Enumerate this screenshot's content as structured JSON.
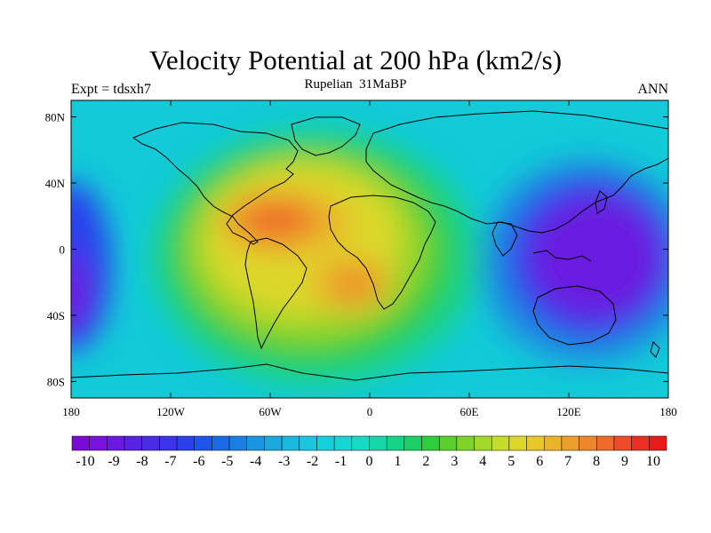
{
  "header": {
    "title": "Velocity Potential at 200 hPa (km2/s)",
    "subtitle": "Rupelian  31MaBP",
    "left_label": "Expt = tdsxh7",
    "right_label": "ANN"
  },
  "map": {
    "projection": "cylindrical-equidistant",
    "lon_range": [
      -180,
      180
    ],
    "lat_range": [
      -90,
      90
    ],
    "lon_ticks": [
      {
        "value": -180,
        "label": "180"
      },
      {
        "value": -120,
        "label": "120W"
      },
      {
        "value": -60,
        "label": "60W"
      },
      {
        "value": 0,
        "label": "0"
      },
      {
        "value": 60,
        "label": "60E"
      },
      {
        "value": 120,
        "label": "120E"
      },
      {
        "value": 180,
        "label": "180"
      }
    ],
    "lat_ticks": [
      {
        "value": 80,
        "label": "80N"
      },
      {
        "value": 40,
        "label": "40N"
      },
      {
        "value": 0,
        "label": "0"
      },
      {
        "value": -40,
        "label": "40S"
      },
      {
        "value": -80,
        "label": "80S"
      }
    ],
    "field_features": [
      {
        "name": "Atlantic / South America maximum",
        "lon": -55,
        "lat": 18,
        "value": 9.5
      },
      {
        "name": "South Atlantic / Africa maximum",
        "lon": -10,
        "lat": -20,
        "value": 8.5
      },
      {
        "name": "Western Pacific minimum",
        "lon": 140,
        "lat": 0,
        "value": -10
      },
      {
        "name": "Dateline minimum west edge",
        "lon": -180,
        "lat": -25,
        "value": -8
      }
    ]
  },
  "colorbar": {
    "labels": [
      "-10",
      "-9",
      "-8",
      "-7",
      "-6",
      "-5",
      "-4",
      "-3",
      "-2",
      "-1",
      "0",
      "1",
      "2",
      "3",
      "4",
      "5",
      "6",
      "7",
      "8",
      "9",
      "10"
    ],
    "colors": [
      "#7a0ad8",
      "#7713dc",
      "#6a1ae0",
      "#5a22e3",
      "#4a2be6",
      "#3a35ea",
      "#2a40ec",
      "#1f55ea",
      "#1a6ae6",
      "#1a7fe2",
      "#1a95e0",
      "#1aa8df",
      "#1ab8de",
      "#1ac6df",
      "#14d0dc",
      "#14d6d3",
      "#14dcc4",
      "#14d8a8",
      "#14d488",
      "#1ccf64",
      "#2fcc3c",
      "#58cf2b",
      "#7ed42a",
      "#a2d82a",
      "#c4dc2a",
      "#dcd82a",
      "#e6c82a",
      "#eab42a",
      "#ec9e2a",
      "#ee862a",
      "#ee6a2a",
      "#ee4c2a",
      "#ec2f22",
      "#e81a1a"
    ]
  }
}
